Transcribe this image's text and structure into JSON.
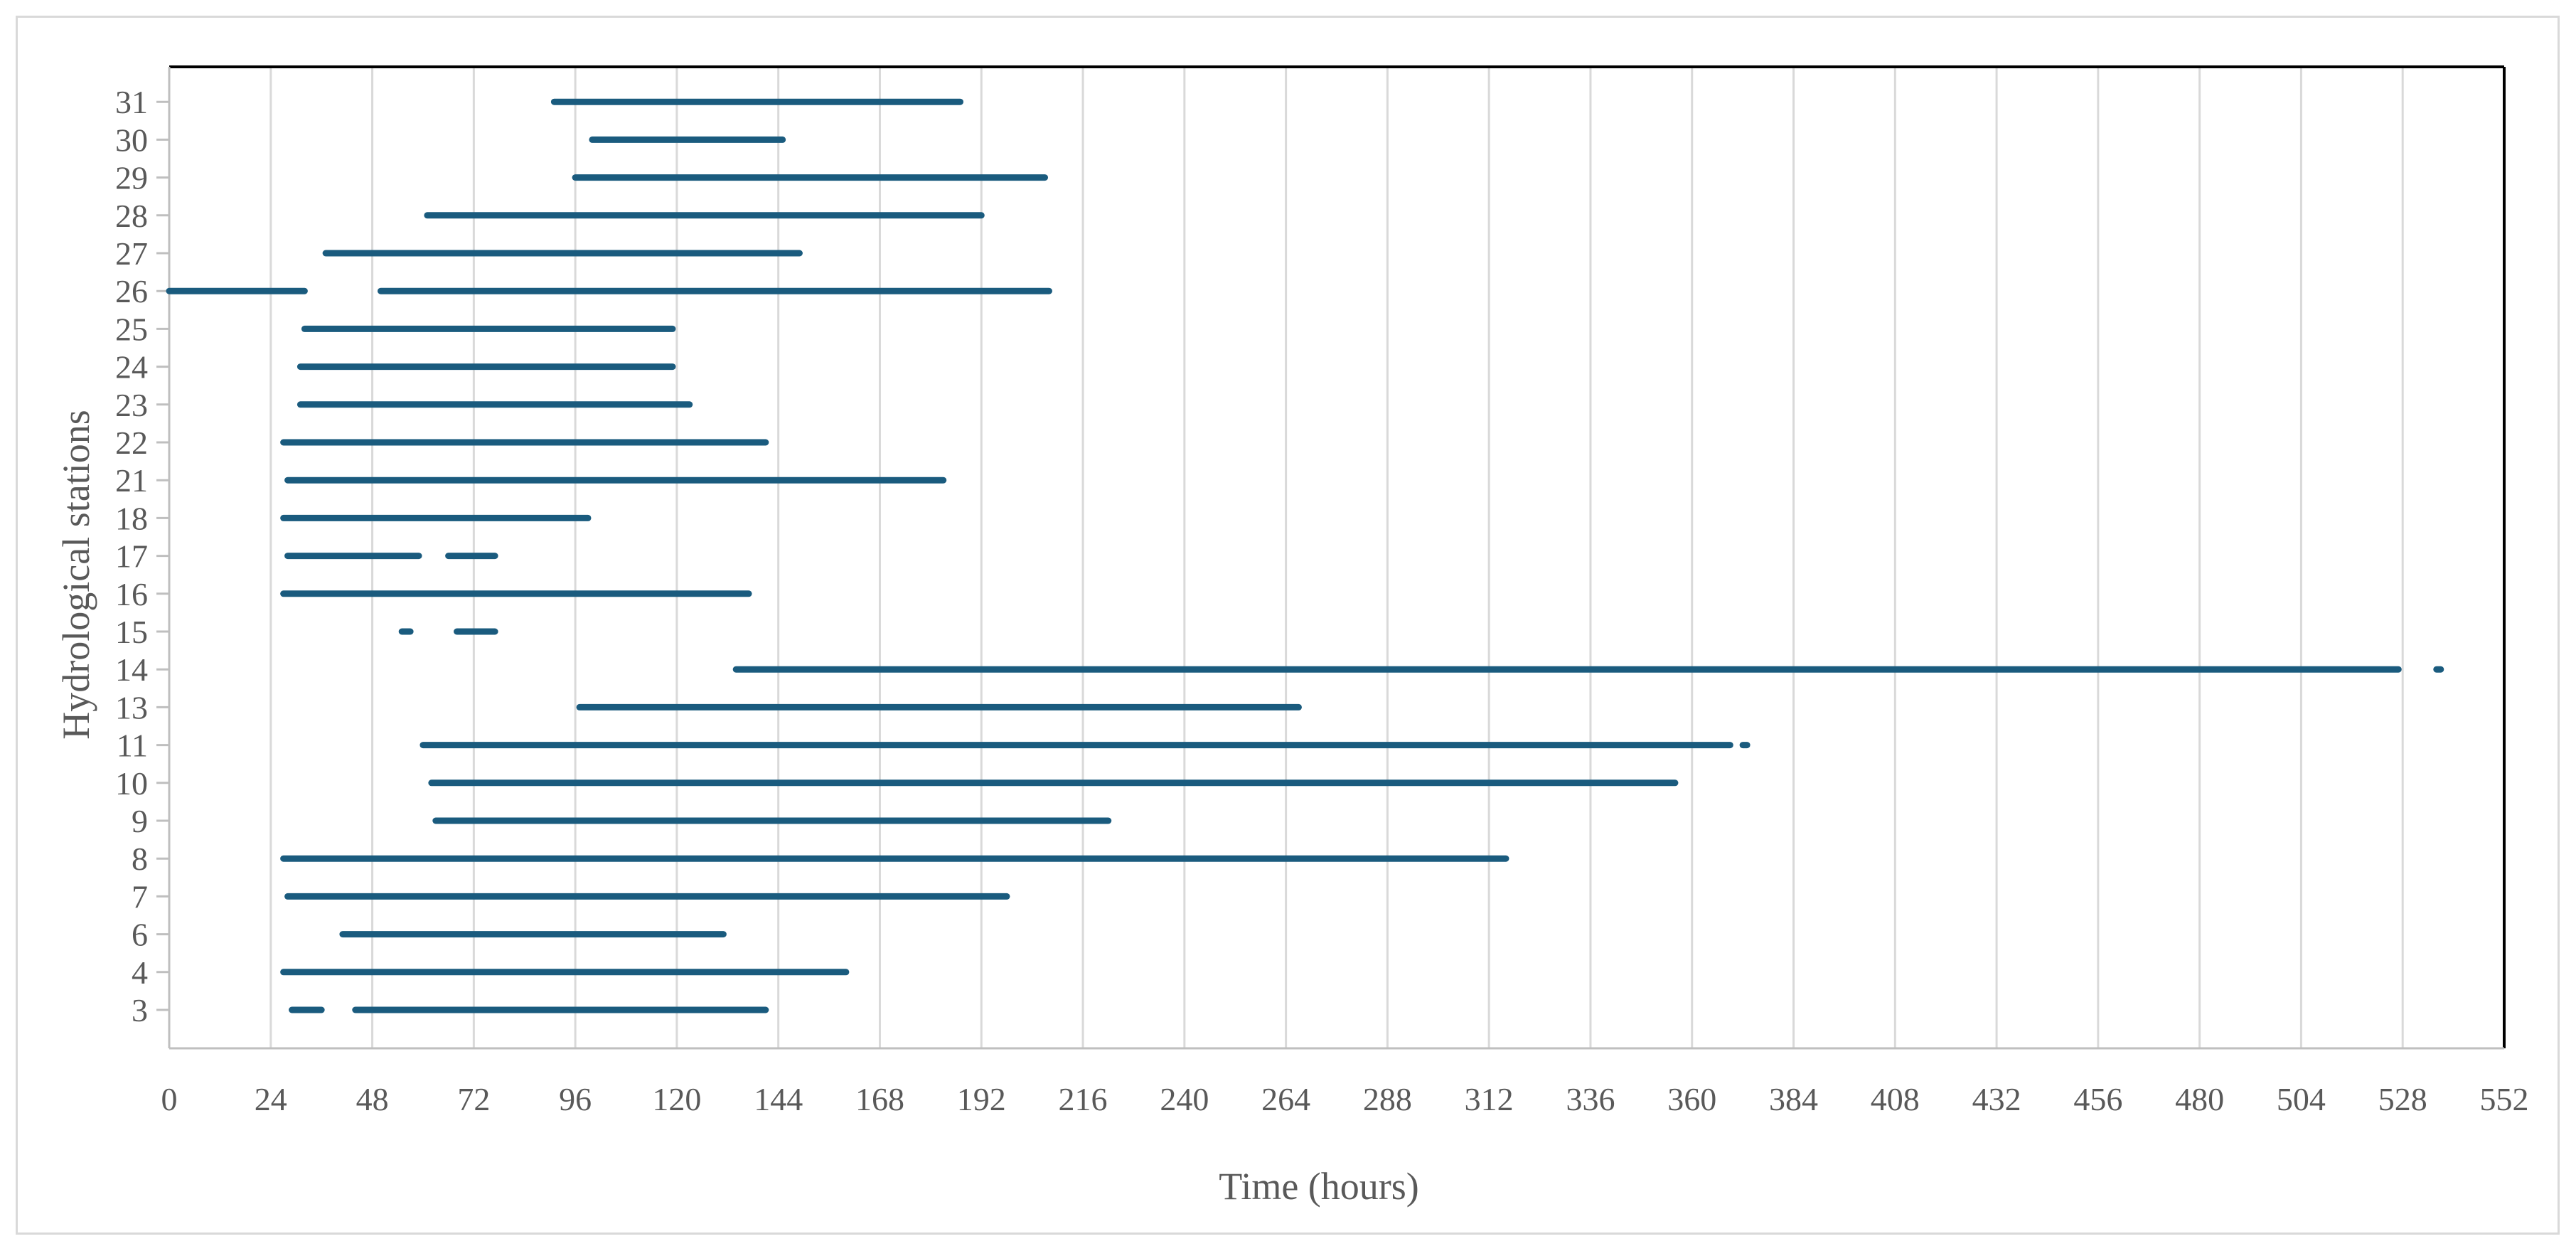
{
  "chart_data": {
    "type": "bar",
    "subtype": "timeline-intervals",
    "title": "",
    "xlabel": "Time (hours)",
    "ylabel": "Hydrological stations",
    "xlim": [
      0,
      552
    ],
    "xticks": [
      "0",
      "24",
      "48",
      "72",
      "96",
      "120",
      "144",
      "168",
      "192",
      "216",
      "240",
      "264",
      "288",
      "312",
      "336",
      "360",
      "384",
      "408",
      "432",
      "456",
      "480",
      "504",
      "528",
      "552"
    ],
    "categories": [
      "3",
      "4",
      "6",
      "7",
      "8",
      "9",
      "10",
      "11",
      "13",
      "14",
      "15",
      "16",
      "17",
      "18",
      "21",
      "22",
      "23",
      "24",
      "25",
      "26",
      "27",
      "28",
      "29",
      "30",
      "31"
    ],
    "grid": "vertical",
    "legend": "none",
    "series": [
      {
        "color": "#1a5b7e",
        "intervals": {
          "3": [
            [
              29,
              36
            ],
            [
              44,
              141
            ]
          ],
          "4": [
            [
              27,
              160
            ]
          ],
          "6": [
            [
              41,
              131
            ]
          ],
          "7": [
            [
              28,
              198
            ]
          ],
          "8": [
            [
              27,
              316
            ]
          ],
          "9": [
            [
              63,
              222
            ]
          ],
          "10": [
            [
              62,
              356
            ]
          ],
          "11": [
            [
              60,
              369
            ],
            [
              372,
              373
            ]
          ],
          "13": [
            [
              97,
              267
            ]
          ],
          "14": [
            [
              134,
              527
            ],
            [
              536,
              537
            ]
          ],
          "15": [
            [
              55,
              57
            ],
            [
              68,
              77
            ]
          ],
          "16": [
            [
              27,
              137
            ]
          ],
          "17": [
            [
              28,
              59
            ],
            [
              66,
              77
            ]
          ],
          "18": [
            [
              27,
              99
            ]
          ],
          "21": [
            [
              28,
              183
            ]
          ],
          "22": [
            [
              27,
              141
            ]
          ],
          "23": [
            [
              31,
              123
            ]
          ],
          "24": [
            [
              31,
              119
            ]
          ],
          "25": [
            [
              32,
              119
            ]
          ],
          "26": [
            [
              0,
              32
            ],
            [
              50,
              208
            ]
          ],
          "27": [
            [
              37,
              149
            ]
          ],
          "28": [
            [
              61,
              192
            ]
          ],
          "29": [
            [
              96,
              207
            ]
          ],
          "30": [
            [
              100,
              145
            ]
          ],
          "31": [
            [
              91,
              187
            ]
          ]
        }
      }
    ]
  }
}
